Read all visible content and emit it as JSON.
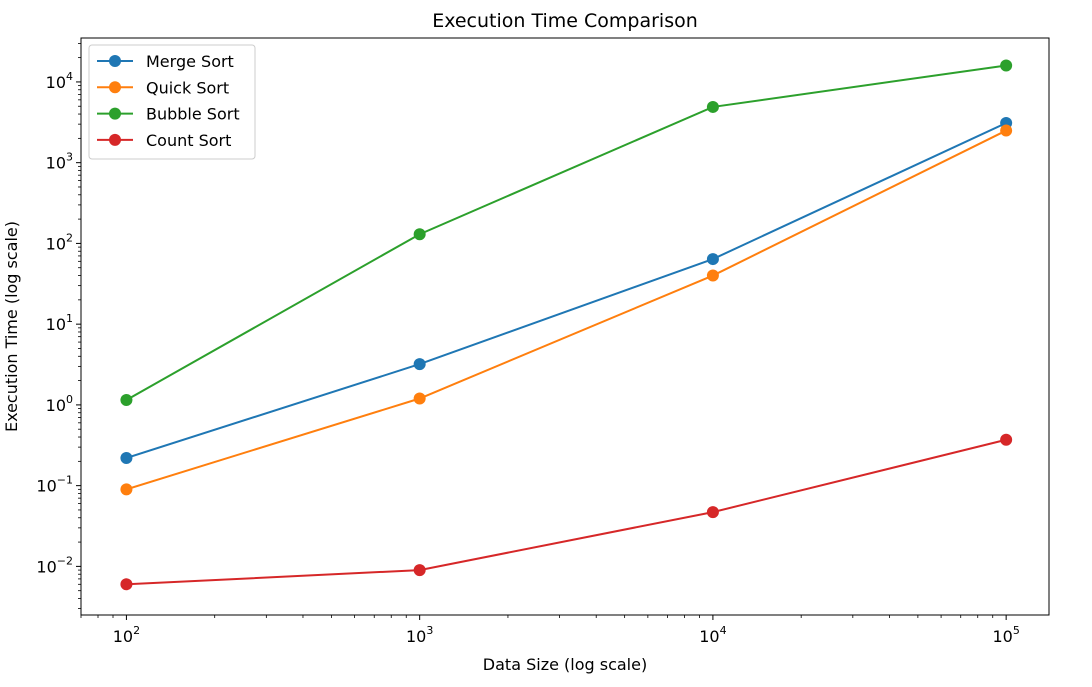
{
  "chart_data": {
    "type": "line",
    "title": "Execution Time Comparison",
    "xlabel": "Data Size (log scale)",
    "ylabel": "Execution Time (log scale)",
    "x_scale": "log",
    "y_scale": "log",
    "x": [
      100,
      1000,
      10000,
      100000
    ],
    "xlim": [
      70,
      140000
    ],
    "ylim": [
      0.0025,
      35000
    ],
    "x_ticks": [
      {
        "value": 100,
        "base": "10",
        "exp": "2"
      },
      {
        "value": 1000,
        "base": "10",
        "exp": "3"
      },
      {
        "value": 10000,
        "base": "10",
        "exp": "4"
      },
      {
        "value": 100000,
        "base": "10",
        "exp": "5"
      }
    ],
    "y_ticks": [
      {
        "value": 0.01,
        "base": "10",
        "exp": "−2"
      },
      {
        "value": 0.1,
        "base": "10",
        "exp": "−1"
      },
      {
        "value": 1,
        "base": "10",
        "exp": "0"
      },
      {
        "value": 10,
        "base": "10",
        "exp": "1"
      },
      {
        "value": 100,
        "base": "10",
        "exp": "2"
      },
      {
        "value": 1000,
        "base": "10",
        "exp": "3"
      },
      {
        "value": 10000,
        "base": "10",
        "exp": "4"
      }
    ],
    "grid": false,
    "legend_position": "top-left",
    "series": [
      {
        "name": "Merge Sort",
        "color": "#1f77b4",
        "values": [
          0.22,
          3.2,
          64,
          3100
        ]
      },
      {
        "name": "Quick Sort",
        "color": "#ff7f0e",
        "values": [
          0.09,
          1.2,
          40,
          2500
        ]
      },
      {
        "name": "Bubble Sort",
        "color": "#2ca02c",
        "values": [
          1.15,
          130,
          4900,
          16000
        ]
      },
      {
        "name": "Count Sort",
        "color": "#d62728",
        "values": [
          0.006,
          0.009,
          0.047,
          0.37
        ]
      }
    ]
  }
}
